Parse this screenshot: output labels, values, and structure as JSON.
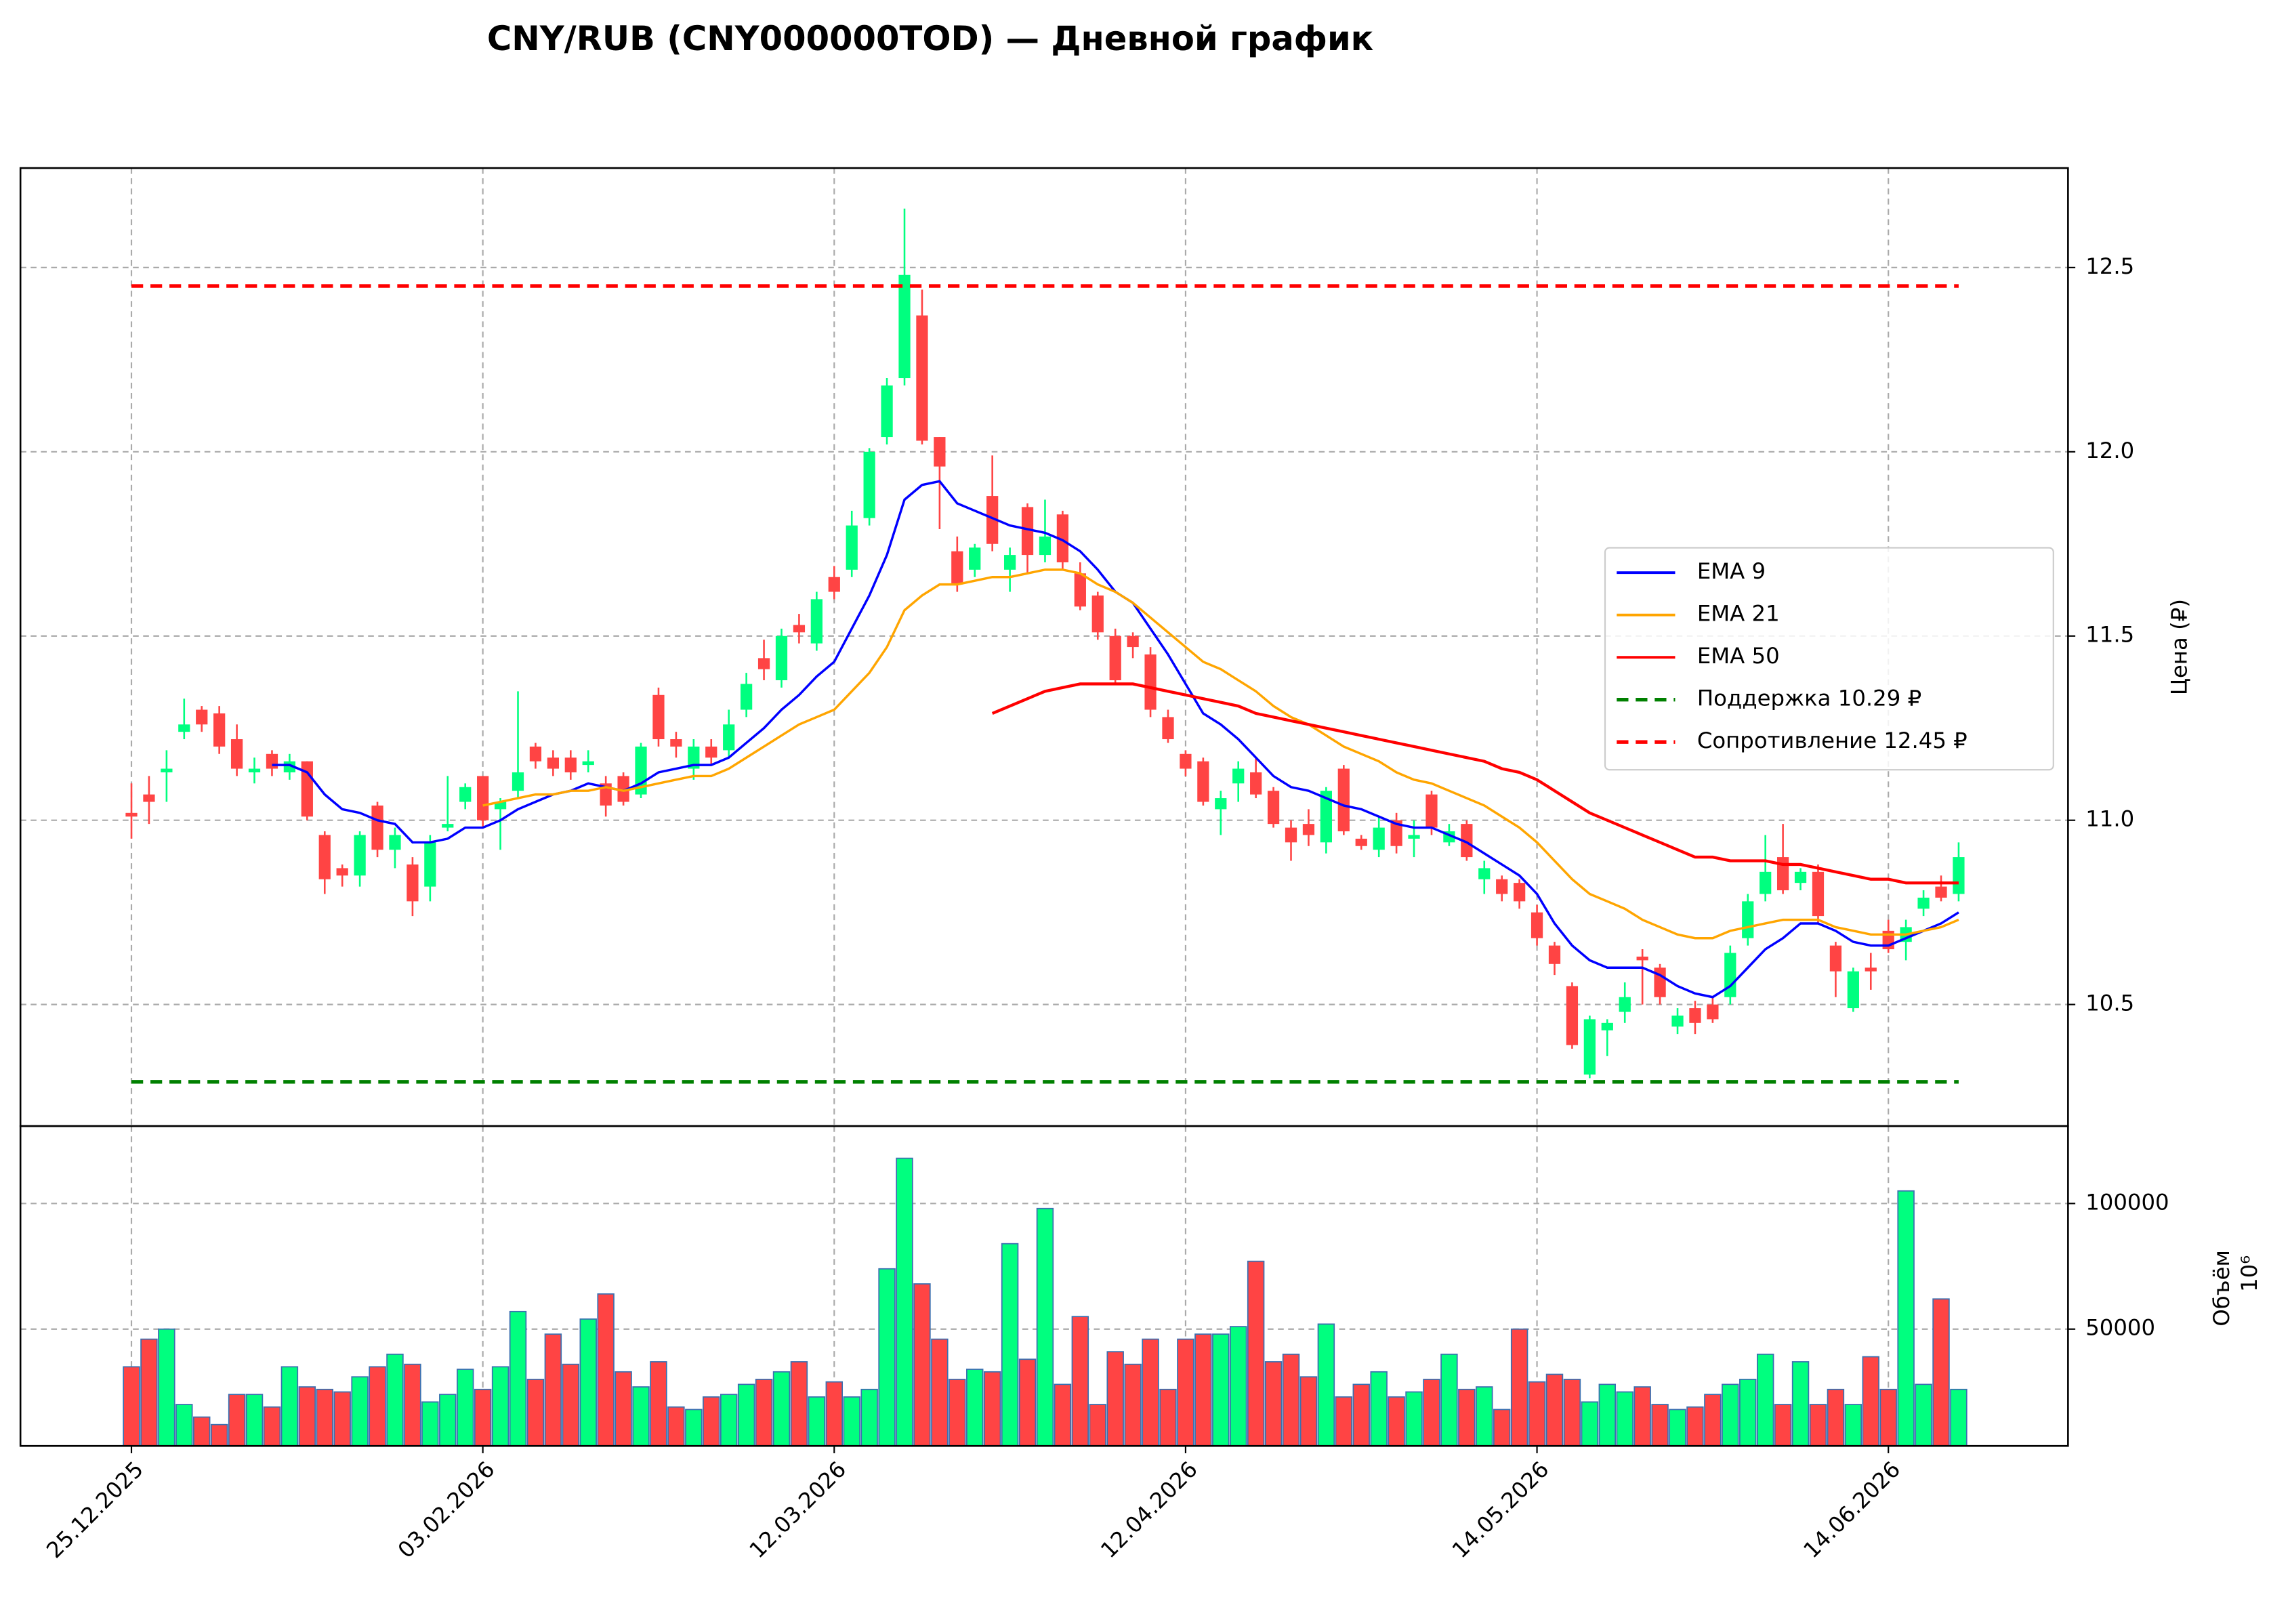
{
  "chart_data": {
    "type": "candlestick",
    "title": "CNY/RUB (CNY000000TOD) — Дневной график",
    "ylabel": "Цена (₽)",
    "categories": [
      "25.12.2025",
      null,
      null,
      null,
      null,
      null,
      null,
      null,
      null,
      null,
      null,
      null,
      null,
      null,
      null,
      null,
      null,
      null,
      null,
      null,
      "03.02.2026",
      null,
      null,
      null,
      null,
      null,
      null,
      null,
      null,
      null,
      null,
      null,
      null,
      null,
      null,
      null,
      null,
      null,
      null,
      null,
      "12.03.2026",
      null,
      null,
      null,
      null,
      null,
      null,
      null,
      null,
      null,
      null,
      null,
      null,
      null,
      null,
      null,
      null,
      null,
      null,
      null,
      "12.04.2026",
      null,
      null,
      null,
      null,
      null,
      null,
      null,
      null,
      null,
      null,
      null,
      null,
      null,
      null,
      null,
      null,
      null,
      null,
      null,
      "14.05.2026",
      null,
      null,
      null,
      null,
      null,
      null,
      null,
      null,
      null,
      null,
      null,
      null,
      null,
      null,
      null,
      null,
      null,
      null,
      null,
      "14.06.2026",
      null,
      null,
      null,
      null
    ],
    "open": [
      11.02,
      11.07,
      11.13,
      11.24,
      11.3,
      11.29,
      11.22,
      11.13,
      11.18,
      11.13,
      11.16,
      10.96,
      10.87,
      10.85,
      11.04,
      10.92,
      10.88,
      10.82,
      10.98,
      11.05,
      11.12,
      11.03,
      11.08,
      11.2,
      11.17,
      11.17,
      11.15,
      11.1,
      11.12,
      11.07,
      11.34,
      11.22,
      11.14,
      11.2,
      11.19,
      11.3,
      11.44,
      11.38,
      11.53,
      11.48,
      11.66,
      11.68,
      11.82,
      12.04,
      12.2,
      12.37,
      12.04,
      11.73,
      11.68,
      11.88,
      11.68,
      11.85,
      11.72,
      11.83,
      11.67,
      11.61,
      11.5,
      11.5,
      11.45,
      11.28,
      11.18,
      11.16,
      11.03,
      11.1,
      11.13,
      11.08,
      10.98,
      10.99,
      10.94,
      11.14,
      10.95,
      10.92,
      11.0,
      10.95,
      11.07,
      10.94,
      10.99,
      10.84,
      10.84,
      10.83,
      10.75,
      10.66,
      10.55,
      10.31,
      10.43,
      10.48,
      10.63,
      10.6,
      10.44,
      10.49,
      10.5,
      10.52,
      10.68,
      10.8,
      10.9,
      10.83,
      10.86,
      10.66,
      10.49,
      10.6,
      10.7,
      10.67,
      10.76,
      10.82,
      10.8
    ],
    "high": [
      11.1,
      11.12,
      11.19,
      11.33,
      11.31,
      11.31,
      11.26,
      11.17,
      11.19,
      11.18,
      11.16,
      10.97,
      10.88,
      10.97,
      11.05,
      10.98,
      10.9,
      10.96,
      11.12,
      11.1,
      11.12,
      11.06,
      11.35,
      11.21,
      11.19,
      11.19,
      11.19,
      11.12,
      11.13,
      11.21,
      11.36,
      11.24,
      11.22,
      11.22,
      11.3,
      11.4,
      11.49,
      11.52,
      11.56,
      11.62,
      11.69,
      11.84,
      12.01,
      12.2,
      12.66,
      12.44,
      12.04,
      11.77,
      11.75,
      11.99,
      11.74,
      11.86,
      11.87,
      11.84,
      11.7,
      11.62,
      11.52,
      11.51,
      11.47,
      11.3,
      11.19,
      11.17,
      11.08,
      11.16,
      11.17,
      11.09,
      11.0,
      11.03,
      11.09,
      11.15,
      10.96,
      11.01,
      11.02,
      11.0,
      11.08,
      10.99,
      11.0,
      10.89,
      10.85,
      10.84,
      10.77,
      10.67,
      10.56,
      10.47,
      10.46,
      10.56,
      10.65,
      10.61,
      10.49,
      10.51,
      10.52,
      10.66,
      10.8,
      10.96,
      10.99,
      10.87,
      10.88,
      10.67,
      10.6,
      10.64,
      10.73,
      10.73,
      10.81,
      10.85,
      10.94
    ],
    "low": [
      10.95,
      10.99,
      11.05,
      11.22,
      11.24,
      11.18,
      11.12,
      11.1,
      11.12,
      11.11,
      11.0,
      10.8,
      10.82,
      10.82,
      10.9,
      10.87,
      10.74,
      10.78,
      10.97,
      11.03,
      10.98,
      10.92,
      11.06,
      11.14,
      11.12,
      11.11,
      11.13,
      11.01,
      11.04,
      11.06,
      11.2,
      11.17,
      11.11,
      11.15,
      11.17,
      11.28,
      11.38,
      11.36,
      11.48,
      11.46,
      11.6,
      11.66,
      11.8,
      12.02,
      12.18,
      12.02,
      11.79,
      11.62,
      11.66,
      11.73,
      11.62,
      11.67,
      11.7,
      11.68,
      11.57,
      11.49,
      11.37,
      11.44,
      11.28,
      11.21,
      11.12,
      11.04,
      10.96,
      11.05,
      11.06,
      10.98,
      10.89,
      10.93,
      10.91,
      10.96,
      10.92,
      10.9,
      10.91,
      10.9,
      10.96,
      10.93,
      10.89,
      10.8,
      10.78,
      10.76,
      10.66,
      10.58,
      10.38,
      10.3,
      10.36,
      10.45,
      10.5,
      10.5,
      10.42,
      10.42,
      10.45,
      10.5,
      10.66,
      10.78,
      10.8,
      10.81,
      10.72,
      10.52,
      10.48,
      10.54,
      10.64,
      10.62,
      10.74,
      10.78,
      10.78
    ],
    "close": [
      11.01,
      11.05,
      11.14,
      11.26,
      11.26,
      11.2,
      11.14,
      11.14,
      11.14,
      11.16,
      11.01,
      10.84,
      10.85,
      10.96,
      10.92,
      10.96,
      10.78,
      10.94,
      10.99,
      11.09,
      11.0,
      11.05,
      11.13,
      11.16,
      11.14,
      11.13,
      11.16,
      11.04,
      11.05,
      11.2,
      11.22,
      11.2,
      11.2,
      11.17,
      11.26,
      11.37,
      11.41,
      11.5,
      11.51,
      11.6,
      11.62,
      11.8,
      12.0,
      12.18,
      12.48,
      12.03,
      11.96,
      11.64,
      11.74,
      11.75,
      11.72,
      11.72,
      11.77,
      11.7,
      11.58,
      11.51,
      11.38,
      11.47,
      11.3,
      11.22,
      11.14,
      11.05,
      11.06,
      11.14,
      11.07,
      10.99,
      10.94,
      10.96,
      11.08,
      10.97,
      10.93,
      10.98,
      10.93,
      10.96,
      10.98,
      10.97,
      10.9,
      10.87,
      10.8,
      10.78,
      10.68,
      10.61,
      10.39,
      10.46,
      10.45,
      10.52,
      10.62,
      10.52,
      10.47,
      10.45,
      10.46,
      10.64,
      10.78,
      10.86,
      10.81,
      10.86,
      10.74,
      10.59,
      10.59,
      10.59,
      10.65,
      10.71,
      10.79,
      10.79,
      10.9
    ],
    "up_color": "#00ff7f",
    "down_color": "#ff4444",
    "ylim": [
      10.17,
      12.77
    ],
    "yticks": [
      10.5,
      {
        "value": 11,
        "label": "11.0"
      },
      11.5,
      {
        "value": 12,
        "label": "12.0"
      },
      12.5
    ],
    "grid": true,
    "legend": "center right",
    "series": [
      {
        "name": "EMA 9",
        "color": "#0000ff",
        "values": [
          null,
          null,
          null,
          null,
          null,
          null,
          null,
          null,
          11.15,
          11.15,
          11.13,
          11.07,
          11.03,
          11.02,
          11.0,
          10.99,
          10.94,
          10.94,
          10.95,
          10.98,
          10.98,
          11.0,
          11.03,
          11.05,
          11.07,
          11.08,
          11.1,
          11.09,
          11.08,
          11.1,
          11.13,
          11.14,
          11.15,
          11.15,
          11.17,
          11.21,
          11.25,
          11.3,
          11.34,
          11.39,
          11.43,
          11.52,
          11.61,
          11.72,
          11.87,
          11.91,
          11.92,
          11.86,
          11.84,
          11.82,
          11.8,
          11.79,
          11.78,
          11.76,
          11.73,
          11.68,
          11.62,
          11.59,
          11.52,
          11.45,
          11.37,
          11.29,
          11.26,
          11.22,
          11.17,
          11.12,
          11.09,
          11.08,
          11.06,
          11.04,
          11.03,
          11.01,
          10.99,
          10.98,
          10.98,
          10.96,
          10.94,
          10.91,
          10.88,
          10.85,
          10.8,
          10.72,
          10.66,
          10.62,
          10.6,
          10.6,
          10.6,
          10.58,
          10.55,
          10.53,
          10.52,
          10.55,
          10.6,
          10.65,
          10.68,
          10.72,
          10.72,
          10.7,
          10.67,
          10.66,
          10.66,
          10.68,
          10.7,
          10.72,
          10.75
        ]
      },
      {
        "name": "EMA 21",
        "color": "#ffa500",
        "values": [
          null,
          null,
          null,
          null,
          null,
          null,
          null,
          null,
          null,
          null,
          null,
          null,
          null,
          null,
          null,
          null,
          null,
          null,
          null,
          null,
          11.04,
          11.05,
          11.06,
          11.07,
          11.07,
          11.08,
          11.08,
          11.09,
          11.08,
          11.09,
          11.1,
          11.11,
          11.12,
          11.12,
          11.14,
          11.17,
          11.2,
          11.23,
          11.26,
          11.28,
          11.3,
          11.35,
          11.4,
          11.47,
          11.57,
          11.61,
          11.64,
          11.64,
          11.65,
          11.66,
          11.66,
          11.67,
          11.68,
          11.68,
          11.67,
          11.64,
          11.62,
          11.59,
          11.55,
          11.51,
          11.47,
          11.43,
          11.41,
          11.38,
          11.35,
          11.31,
          11.28,
          11.26,
          11.23,
          11.2,
          11.18,
          11.16,
          11.13,
          11.11,
          11.1,
          11.08,
          11.06,
          11.04,
          11.01,
          10.98,
          10.94,
          10.89,
          10.84,
          10.8,
          10.78,
          10.76,
          10.73,
          10.71,
          10.69,
          10.68,
          10.68,
          10.7,
          10.71,
          10.72,
          10.73,
          10.73,
          10.73,
          10.71,
          10.7,
          10.69,
          10.69,
          10.69,
          10.7,
          10.71,
          10.73
        ]
      },
      {
        "name": "EMA 50",
        "color": "#ff0000",
        "values": [
          null,
          null,
          null,
          null,
          null,
          null,
          null,
          null,
          null,
          null,
          null,
          null,
          null,
          null,
          null,
          null,
          null,
          null,
          null,
          null,
          null,
          null,
          null,
          null,
          null,
          null,
          null,
          null,
          null,
          null,
          null,
          null,
          null,
          null,
          null,
          null,
          null,
          null,
          null,
          null,
          null,
          null,
          null,
          null,
          null,
          null,
          null,
          null,
          null,
          11.29,
          11.31,
          11.33,
          11.35,
          11.36,
          11.37,
          11.37,
          11.37,
          11.37,
          11.36,
          11.35,
          11.34,
          11.33,
          11.32,
          11.31,
          11.29,
          11.28,
          11.27,
          11.26,
          11.25,
          11.24,
          11.23,
          11.22,
          11.21,
          11.2,
          11.19,
          11.18,
          11.17,
          11.16,
          11.14,
          11.13,
          11.11,
          11.08,
          11.05,
          11.02,
          11.0,
          10.98,
          10.96,
          10.94,
          10.92,
          10.9,
          10.9,
          10.89,
          10.89,
          10.89,
          10.88,
          10.88,
          10.87,
          10.86,
          10.85,
          10.84,
          10.84,
          10.83,
          10.83,
          10.83,
          10.83
        ]
      }
    ],
    "hlines": [
      {
        "name": "Поддержка 10.29 ₽",
        "color": "#008000",
        "value": 10.29
      },
      {
        "name": "Сопротивление 12.45 ₽",
        "color": "#ff0000",
        "value": 12.45
      }
    ],
    "volume": {
      "ylabel": "Объём",
      "offset": "10⁶",
      "edgecolor": "#3a6fb0",
      "ylim": [
        3500,
        130800
      ],
      "yticks": [
        50000,
        100000
      ],
      "values": [
        35000,
        46000,
        50000,
        20000,
        15000,
        12000,
        24000,
        24000,
        19000,
        35000,
        27000,
        26000,
        25000,
        31000,
        35000,
        40000,
        36000,
        21000,
        24000,
        34000,
        26000,
        35000,
        57000,
        30000,
        48000,
        36000,
        54000,
        64000,
        33000,
        27000,
        37000,
        19000,
        18000,
        23000,
        24000,
        28000,
        30000,
        33000,
        37000,
        23000,
        29000,
        23000,
        26000,
        74000,
        118000,
        68000,
        46000,
        30000,
        34000,
        33000,
        84000,
        38000,
        98000,
        28000,
        55000,
        20000,
        41000,
        36000,
        46000,
        26000,
        46000,
        48000,
        48000,
        51000,
        77000,
        37000,
        40000,
        31000,
        52000,
        23000,
        28000,
        33000,
        23000,
        25000,
        30000,
        40000,
        26000,
        27000,
        18000,
        50000,
        29000,
        32000,
        30000,
        21000,
        28000,
        25000,
        27000,
        20000,
        18000,
        19000,
        24000,
        28000,
        30000,
        40000,
        20000,
        37000,
        20000,
        26000,
        20000,
        39000,
        26000,
        105000,
        28000,
        62000,
        26000
      ]
    }
  }
}
